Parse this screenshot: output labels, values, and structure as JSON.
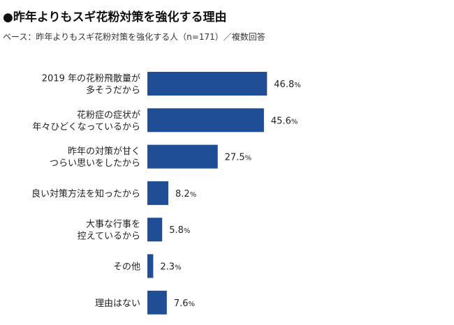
{
  "header": {
    "title": "●昨年よりもスギ花粉対策を強化する理由",
    "subtitle": "ベース：昨年よりもスギ花粉対策を強化する人（n=171）／複数回答"
  },
  "chart_data": {
    "type": "bar",
    "orientation": "horizontal",
    "title": "●昨年よりもスギ花粉対策を強化する理由",
    "subtitle": "ベース：昨年よりもスギ花粉対策を強化する人（n=171）／複数回答",
    "categories": [
      [
        "2019 年の花粉飛散量が",
        "多そうだから"
      ],
      [
        "花粉症の症状が",
        "年々ひどくなっているから"
      ],
      [
        "昨年の対策が甘く",
        "つらい思いをしたから"
      ],
      [
        "良い対策方法を知ったから"
      ],
      [
        "大事な行事を",
        "控えているから"
      ],
      [
        "その他"
      ],
      [
        "理由はない"
      ]
    ],
    "values": [
      46.8,
      45.6,
      27.5,
      8.2,
      5.8,
      2.3,
      7.6
    ],
    "unit": "%",
    "bar_color": "#1f4e96",
    "xlim": [
      0,
      50
    ],
    "grid": false,
    "legend": "none"
  }
}
